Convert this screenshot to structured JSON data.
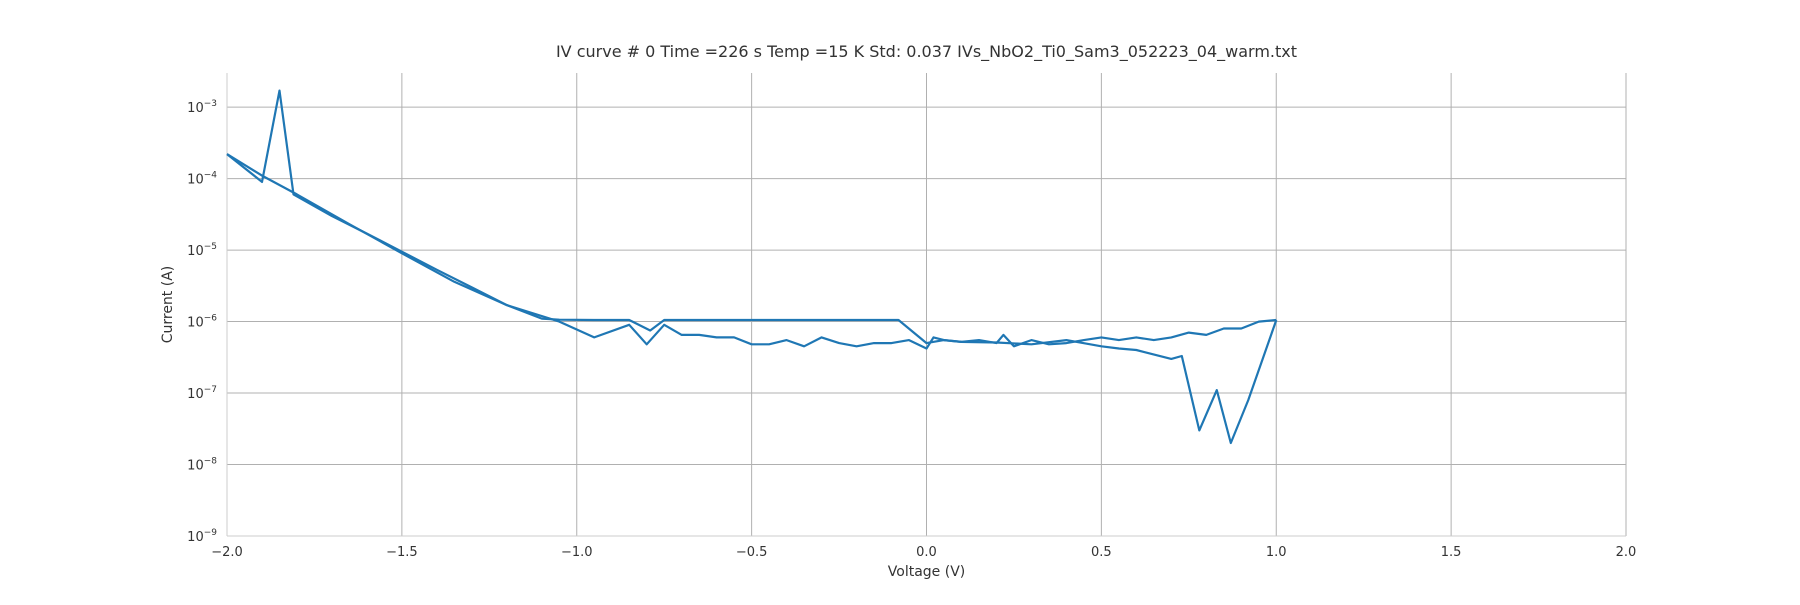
{
  "chart_data": {
    "type": "line",
    "title": "IV curve # 0  Time =226 s  Temp =15 K Std: 0.037 IVs_NbO2_Ti0_Sam3_052223_04_warm.txt",
    "xlabel": "Voltage (V)",
    "ylabel": "Current (A)",
    "xlim": [
      -2.0,
      2.0
    ],
    "ylim": [
      1e-09,
      0.003
    ],
    "yscale": "log",
    "grid": true,
    "legend": false,
    "line_color": "#1f77b4",
    "x_ticks": [
      {
        "value": -2.0,
        "label": "−2.0"
      },
      {
        "value": -1.5,
        "label": "−1.5"
      },
      {
        "value": -1.0,
        "label": "−1.0"
      },
      {
        "value": -0.5,
        "label": "−0.5"
      },
      {
        "value": 0.0,
        "label": "0.0"
      },
      {
        "value": 0.5,
        "label": "0.5"
      },
      {
        "value": 1.0,
        "label": "1.0"
      },
      {
        "value": 1.5,
        "label": "1.5"
      },
      {
        "value": 2.0,
        "label": "2.0"
      }
    ],
    "y_ticks": [
      {
        "value": 1e-09,
        "base": "10",
        "exp": "−9"
      },
      {
        "value": 1e-08,
        "base": "10",
        "exp": "−8"
      },
      {
        "value": 1e-07,
        "base": "10",
        "exp": "−7"
      },
      {
        "value": 1e-06,
        "base": "10",
        "exp": "−6"
      },
      {
        "value": 1e-05,
        "base": "10",
        "exp": "−5"
      },
      {
        "value": 0.0001,
        "base": "10",
        "exp": "−4"
      },
      {
        "value": 0.001,
        "base": "10",
        "exp": "−3"
      }
    ],
    "series": [
      {
        "x": [
          -2.0,
          -1.9,
          -1.85,
          -1.81,
          -1.7,
          -1.6,
          -1.5,
          -1.4,
          -1.3,
          -1.2,
          -1.1,
          -1.05,
          -0.95,
          -0.85,
          -0.79,
          -0.75,
          -0.7,
          -0.6,
          -0.5,
          -0.4,
          -0.3,
          -0.2,
          -0.1,
          -0.08,
          0.0,
          0.05,
          0.1,
          0.2,
          0.3,
          0.4,
          0.5,
          0.55,
          0.6,
          0.7,
          0.73,
          0.78,
          0.83,
          0.87,
          0.92,
          1.0
        ],
        "y": [
          0.00022,
          9e-05,
          0.0017,
          6e-05,
          3e-05,
          1.7e-05,
          9.5e-06,
          5.3e-06,
          3e-06,
          1.7e-06,
          1.1e-06,
          1.06e-06,
          1.05e-06,
          1.05e-06,
          7.5e-07,
          1.05e-06,
          1.05e-06,
          1.05e-06,
          1.05e-06,
          1.05e-06,
          1.05e-06,
          1.05e-06,
          1.05e-06,
          1.05e-06,
          5e-07,
          5.5e-07,
          5.2e-07,
          5.1e-07,
          4.8e-07,
          5.5e-07,
          4.5e-07,
          4.2e-07,
          4e-07,
          3e-07,
          3.3e-07,
          3e-08,
          1.1e-07,
          2e-08,
          8e-08,
          1.05e-06
        ]
      },
      {
        "x": [
          1.0,
          0.95,
          0.9,
          0.85,
          0.8,
          0.75,
          0.7,
          0.65,
          0.6,
          0.55,
          0.5,
          0.45,
          0.4,
          0.35,
          0.3,
          0.25,
          0.22,
          0.2,
          0.15,
          0.1,
          0.05,
          0.02,
          0.0,
          -0.05,
          -0.1,
          -0.15,
          -0.2,
          -0.25,
          -0.3,
          -0.35,
          -0.4,
          -0.45,
          -0.5,
          -0.55,
          -0.6,
          -0.65,
          -0.7,
          -0.75,
          -0.8,
          -0.85,
          -0.95,
          -1.05,
          -1.2,
          -1.35,
          -1.5,
          -1.65,
          -1.8,
          -1.9,
          -2.0
        ],
        "y": [
          1.05e-06,
          1e-06,
          8e-07,
          8e-07,
          6.5e-07,
          7e-07,
          6e-07,
          5.5e-07,
          6e-07,
          5.5e-07,
          6e-07,
          5.5e-07,
          5e-07,
          4.8e-07,
          5.5e-07,
          4.5e-07,
          6.5e-07,
          5e-07,
          5.5e-07,
          5.2e-07,
          5.5e-07,
          6e-07,
          4.2e-07,
          5.5e-07,
          5e-07,
          5e-07,
          4.5e-07,
          5e-07,
          6e-07,
          4.5e-07,
          5.5e-07,
          4.8e-07,
          4.8e-07,
          6e-07,
          6e-07,
          6.5e-07,
          6.5e-07,
          9e-07,
          4.8e-07,
          9e-07,
          6e-07,
          1e-06,
          1.7e-06,
          3.6e-06,
          9e-06,
          2.3e-05,
          6e-05,
          0.00011,
          0.00022
        ]
      }
    ]
  }
}
